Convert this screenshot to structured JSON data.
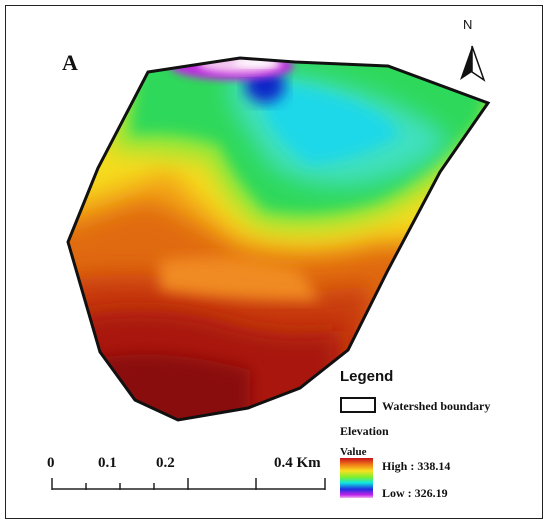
{
  "panel_letter": "A",
  "north_arrow": {
    "label": "N",
    "icon": "north-arrow-icon"
  },
  "legend": {
    "title": "Legend",
    "boundary_label": "Watershed boundary",
    "elevation_label": "Elevation",
    "value_label": "Value",
    "high": "High : 338.14",
    "low": "Low : 326.19",
    "colors": [
      "#c8101a",
      "#f07818",
      "#f8e020",
      "#7cf030",
      "#10e8e0",
      "#2030e0",
      "#c020e8"
    ]
  },
  "scale_bar": {
    "labels": [
      "0",
      "0.1",
      "0.2",
      "0.4 Km"
    ]
  }
}
